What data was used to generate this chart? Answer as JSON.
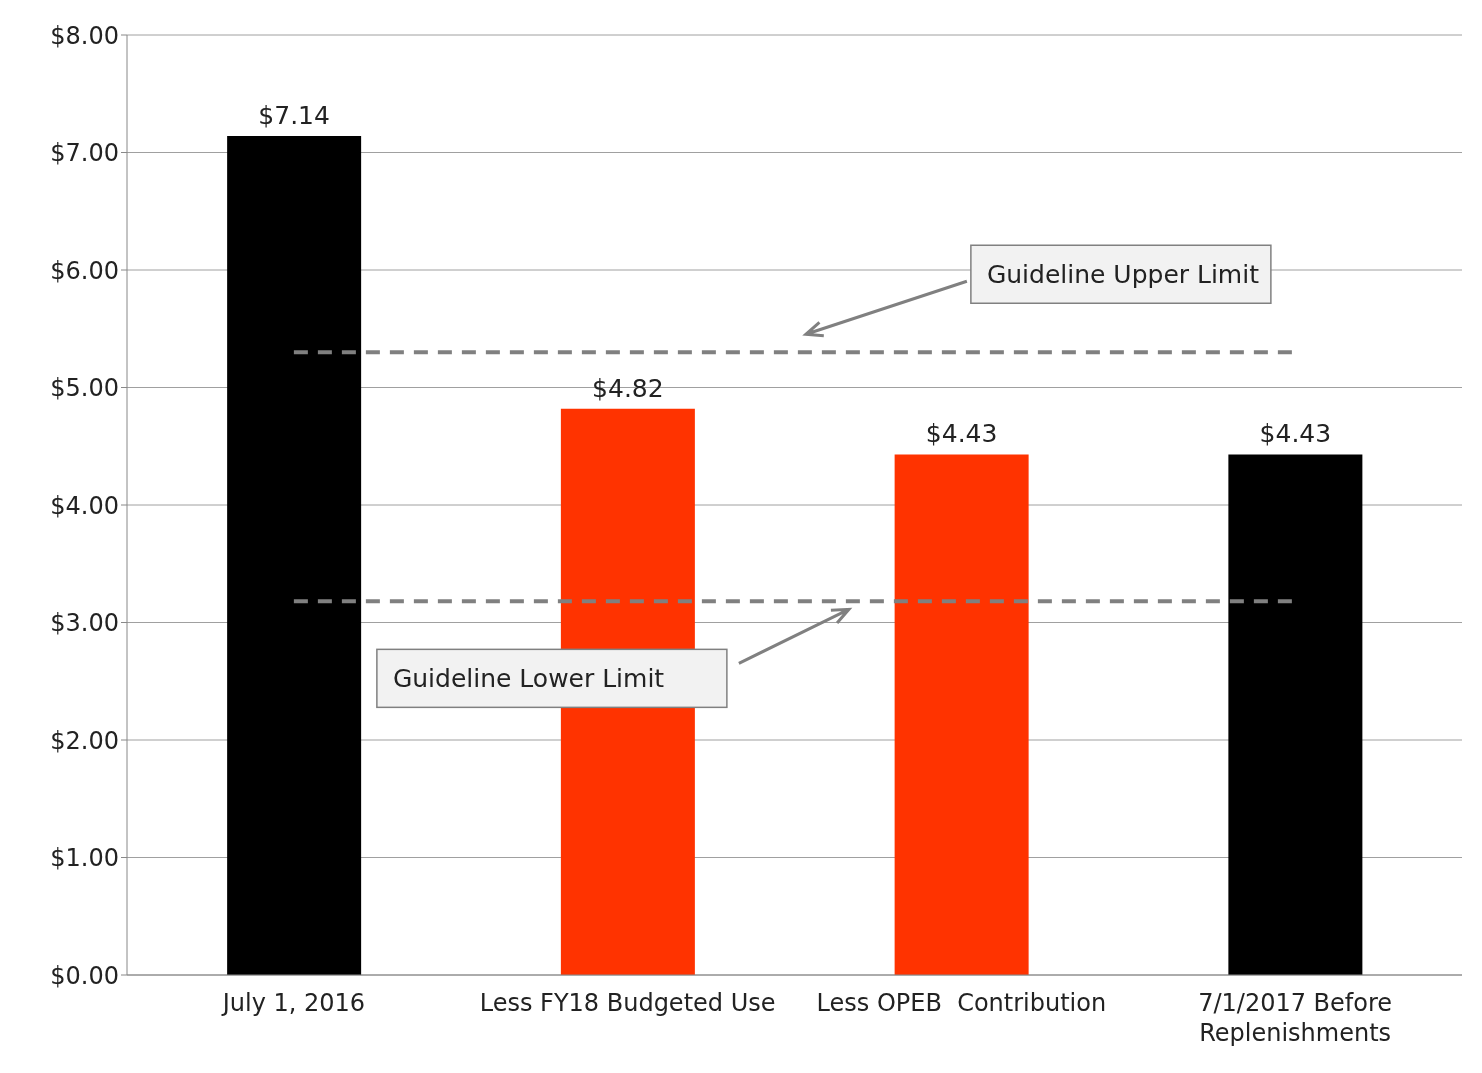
{
  "chart_data": {
    "type": "bar",
    "categories": [
      "July 1, 2016",
      "Less FY18 Budgeted Use",
      "Less OPEB  Contribution",
      "7/1/2017 Before Replenishments"
    ],
    "values": [
      7.14,
      4.82,
      4.43,
      4.43
    ],
    "colors": [
      "#000000",
      "#ff3300",
      "#ff3300",
      "#000000"
    ],
    "value_labels": [
      "$7.14",
      "$4.82",
      "$4.43",
      "$4.43"
    ],
    "ylim": [
      0,
      8
    ],
    "yticks": [
      {
        "value": 0,
        "label": "$0.00"
      },
      {
        "value": 1,
        "label": "$1.00"
      },
      {
        "value": 2,
        "label": "$2.00"
      },
      {
        "value": 3,
        "label": "$3.00"
      },
      {
        "value": 4,
        "label": "$4.00"
      },
      {
        "value": 5,
        "label": "$5.00"
      },
      {
        "value": 6,
        "label": "$6.00"
      },
      {
        "value": 7,
        "label": "$7.00"
      },
      {
        "value": 8,
        "label": "$8.00"
      }
    ],
    "grid": "y",
    "ref_lines": [
      {
        "axis": "y",
        "value": 5.3,
        "label": "Guideline Upper Limit",
        "color": "#808080",
        "line_style": "dashed"
      },
      {
        "axis": "y",
        "value": 3.18,
        "label": "Guideline Lower Limit",
        "color": "#808080",
        "line_style": "dashed"
      }
    ]
  }
}
